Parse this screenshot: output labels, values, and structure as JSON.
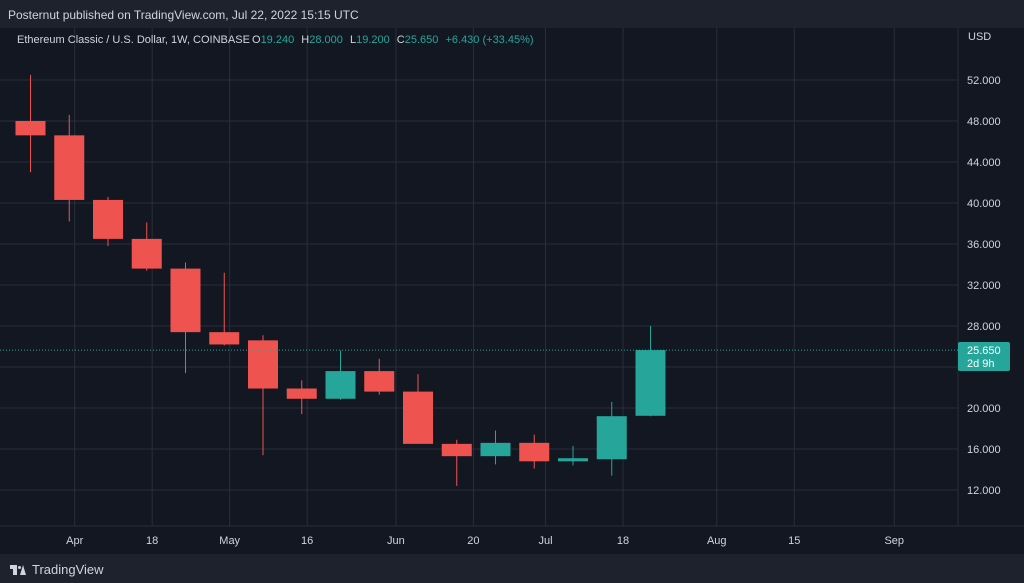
{
  "header": {
    "published": "Posternut published on TradingView.com, Jul 22, 2022 15:15 UTC"
  },
  "legend": {
    "symbol": "Ethereum Classic / U.S. Dollar, 1W, COINBASE",
    "o_label": "O",
    "o_value": "19.240",
    "h_label": "H",
    "h_value": "28.000",
    "l_label": "L",
    "l_value": "19.200",
    "c_label": "C",
    "c_value": "25.650",
    "change": "+6.430 (+33.45%)"
  },
  "price_tag": {
    "value": "25.650",
    "countdown": "2d 9h"
  },
  "footer": {
    "brand": "TradingView"
  },
  "colors": {
    "bull": "#26a69a",
    "bear": "#ef5350",
    "bg": "#131722",
    "grid": "#2a2e39",
    "text": "#d1d4dc"
  },
  "chart_data": {
    "type": "candlestick",
    "currency_label": "USD",
    "y_ticks": [
      "52.000",
      "48.000",
      "44.000",
      "40.000",
      "36.000",
      "32.000",
      "28.000",
      "24.000",
      "20.000",
      "16.000",
      "12.000"
    ],
    "y_tick_values": [
      52,
      48,
      44,
      40,
      36,
      32,
      28,
      24,
      20,
      16,
      12
    ],
    "x_ticks": [
      "Apr",
      "18",
      "May",
      "16",
      "Jun",
      "20",
      "Jul",
      "18",
      "Aug",
      "15",
      "Sep"
    ],
    "x_tick_weeks": [
      1.14,
      3.14,
      5.14,
      7.14,
      9.43,
      11.43,
      13.29,
      15.29,
      17.71,
      19.71,
      22.29
    ],
    "last_price": 25.65,
    "candles": [
      {
        "open": 48.0,
        "high": 52.5,
        "low": 43.0,
        "close": 46.6
      },
      {
        "open": 46.6,
        "high": 48.6,
        "low": 38.2,
        "close": 40.3
      },
      {
        "open": 40.3,
        "high": 40.6,
        "low": 35.8,
        "close": 36.5
      },
      {
        "open": 36.5,
        "high": 38.1,
        "low": 33.4,
        "close": 33.6
      },
      {
        "open": 33.6,
        "high": 34.2,
        "low": 23.4,
        "close": 27.4
      },
      {
        "open": 27.4,
        "high": 33.2,
        "low": 26.1,
        "close": 26.2
      },
      {
        "open": 26.6,
        "high": 27.1,
        "low": 15.4,
        "close": 21.9
      },
      {
        "open": 21.9,
        "high": 22.7,
        "low": 19.4,
        "close": 20.9
      },
      {
        "open": 20.9,
        "high": 25.6,
        "low": 20.8,
        "close": 23.6
      },
      {
        "open": 23.6,
        "high": 24.8,
        "low": 21.3,
        "close": 21.6
      },
      {
        "open": 21.6,
        "high": 23.3,
        "low": 16.6,
        "close": 16.5
      },
      {
        "open": 16.5,
        "high": 16.9,
        "low": 12.4,
        "close": 15.3
      },
      {
        "open": 15.3,
        "high": 17.8,
        "low": 14.5,
        "close": 16.6
      },
      {
        "open": 16.6,
        "high": 17.4,
        "low": 14.1,
        "close": 14.8
      },
      {
        "open": 14.8,
        "high": 16.3,
        "low": 14.4,
        "close": 15.1
      },
      {
        "open": 15.0,
        "high": 20.6,
        "low": 13.4,
        "close": 19.2
      },
      {
        "open": 19.24,
        "high": 28.0,
        "low": 19.2,
        "close": 25.65
      }
    ]
  }
}
